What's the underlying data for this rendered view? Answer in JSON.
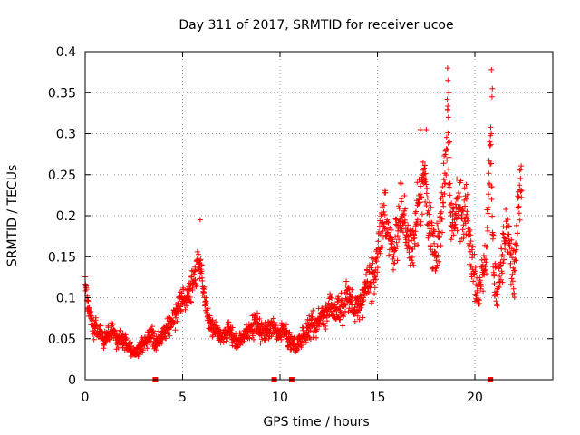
{
  "chart_data": {
    "type": "scatter",
    "title": "Day 311 of 2017, SRMTID for receiver ucoe",
    "xlabel": "GPS time / hours",
    "ylabel": "SRMTID / TECUs",
    "xlim": [
      0,
      24
    ],
    "ylim": [
      0,
      0.4
    ],
    "xticks": [
      0,
      5,
      10,
      15,
      20
    ],
    "xtick_labels": [
      "0",
      "5",
      "10",
      "15",
      "20"
    ],
    "yticks": [
      0,
      0.05,
      0.1,
      0.15,
      0.2,
      0.25,
      0.3,
      0.35,
      0.4
    ],
    "ytick_labels": [
      "0",
      "0.05",
      "0.1",
      "0.15",
      "0.2",
      "0.25",
      "0.3",
      "0.35",
      "0.4"
    ],
    "grid": true,
    "marker": "plus",
    "color": "#ff0000",
    "series": [
      {
        "name": "SRMTID",
        "x": [
          0.0,
          0.2,
          0.4,
          0.6,
          0.8,
          1.0,
          1.2,
          1.4,
          1.6,
          1.8,
          2.0,
          2.2,
          2.4,
          2.6,
          2.8,
          3.0,
          3.2,
          3.4,
          3.6,
          3.8,
          4.0,
          4.2,
          4.4,
          4.6,
          4.8,
          5.0,
          5.2,
          5.4,
          5.6,
          5.8,
          6.0,
          6.2,
          6.4,
          6.6,
          6.8,
          7.0,
          7.2,
          7.4,
          7.6,
          7.8,
          8.0,
          8.2,
          8.4,
          8.6,
          8.8,
          9.0,
          9.2,
          9.4,
          9.6,
          9.8,
          10.0,
          10.2,
          10.4,
          10.6,
          10.8,
          11.0,
          11.2,
          11.4,
          11.6,
          11.8,
          12.0,
          12.2,
          12.4,
          12.6,
          12.8,
          13.0,
          13.2,
          13.4,
          13.6,
          13.8,
          14.0,
          14.2,
          14.4,
          14.6,
          14.8,
          15.0,
          15.2,
          15.4,
          15.6,
          15.8,
          16.0,
          16.2,
          16.4,
          16.6,
          16.8,
          17.0,
          17.2,
          17.4,
          17.6,
          17.8,
          18.0,
          18.2,
          18.4,
          18.6,
          18.8,
          19.0,
          19.2,
          19.4,
          19.6,
          19.8,
          20.0,
          20.2,
          20.4,
          20.6,
          20.8,
          21.0,
          21.2,
          21.4,
          21.6,
          21.8,
          22.0,
          22.2,
          22.4
        ],
        "y": [
          0.12,
          0.08,
          0.065,
          0.06,
          0.055,
          0.05,
          0.055,
          0.06,
          0.045,
          0.05,
          0.045,
          0.04,
          0.035,
          0.03,
          0.04,
          0.045,
          0.05,
          0.055,
          0.045,
          0.05,
          0.055,
          0.06,
          0.07,
          0.075,
          0.09,
          0.1,
          0.095,
          0.11,
          0.12,
          0.15,
          0.12,
          0.09,
          0.07,
          0.06,
          0.055,
          0.05,
          0.055,
          0.06,
          0.05,
          0.045,
          0.05,
          0.055,
          0.06,
          0.065,
          0.07,
          0.06,
          0.055,
          0.06,
          0.065,
          0.06,
          0.055,
          0.06,
          0.05,
          0.045,
          0.04,
          0.045,
          0.055,
          0.06,
          0.07,
          0.065,
          0.075,
          0.08,
          0.085,
          0.09,
          0.08,
          0.085,
          0.09,
          0.1,
          0.095,
          0.085,
          0.09,
          0.1,
          0.11,
          0.12,
          0.13,
          0.15,
          0.19,
          0.2,
          0.17,
          0.16,
          0.18,
          0.2,
          0.19,
          0.17,
          0.16,
          0.19,
          0.21,
          0.24,
          0.2,
          0.17,
          0.14,
          0.2,
          0.22,
          0.3,
          0.18,
          0.2,
          0.22,
          0.19,
          0.21,
          0.15,
          0.12,
          0.1,
          0.13,
          0.16,
          0.3,
          0.12,
          0.11,
          0.15,
          0.18,
          0.16,
          0.12,
          0.2,
          0.25
        ],
        "spread": [
          0.02,
          0.025,
          0.02,
          0.018,
          0.018,
          0.018,
          0.02,
          0.018,
          0.015,
          0.015,
          0.015,
          0.014,
          0.012,
          0.01,
          0.014,
          0.015,
          0.018,
          0.02,
          0.015,
          0.016,
          0.016,
          0.018,
          0.02,
          0.022,
          0.025,
          0.025,
          0.025,
          0.03,
          0.03,
          0.04,
          0.03,
          0.025,
          0.02,
          0.018,
          0.016,
          0.015,
          0.015,
          0.016,
          0.015,
          0.015,
          0.015,
          0.016,
          0.018,
          0.02,
          0.022,
          0.018,
          0.016,
          0.018,
          0.02,
          0.018,
          0.018,
          0.018,
          0.016,
          0.015,
          0.014,
          0.015,
          0.016,
          0.018,
          0.022,
          0.02,
          0.022,
          0.024,
          0.025,
          0.025,
          0.022,
          0.022,
          0.025,
          0.028,
          0.028,
          0.025,
          0.025,
          0.03,
          0.03,
          0.035,
          0.04,
          0.045,
          0.05,
          0.05,
          0.045,
          0.045,
          0.05,
          0.05,
          0.045,
          0.045,
          0.04,
          0.05,
          0.06,
          0.06,
          0.05,
          0.05,
          0.04,
          0.06,
          0.06,
          0.07,
          0.05,
          0.05,
          0.05,
          0.05,
          0.05,
          0.04,
          0.04,
          0.03,
          0.04,
          0.04,
          0.07,
          0.04,
          0.04,
          0.05,
          0.05,
          0.05,
          0.04,
          0.05,
          0.05
        ],
        "outliers": [
          [
            18.6,
            0.38
          ],
          [
            18.62,
            0.365
          ],
          [
            18.66,
            0.35
          ],
          [
            18.6,
            0.33
          ],
          [
            18.64,
            0.32
          ],
          [
            20.85,
            0.378
          ],
          [
            20.9,
            0.355
          ],
          [
            20.88,
            0.345
          ],
          [
            20.84,
            0.3
          ],
          [
            18.7,
            0.29
          ],
          [
            17.2,
            0.305
          ],
          [
            17.5,
            0.305
          ],
          [
            5.9,
            0.195
          ],
          [
            14.6,
            0.14
          ]
        ]
      }
    ],
    "data_gaps_hours": [
      3.6,
      9.7,
      10.6,
      20.8
    ]
  }
}
